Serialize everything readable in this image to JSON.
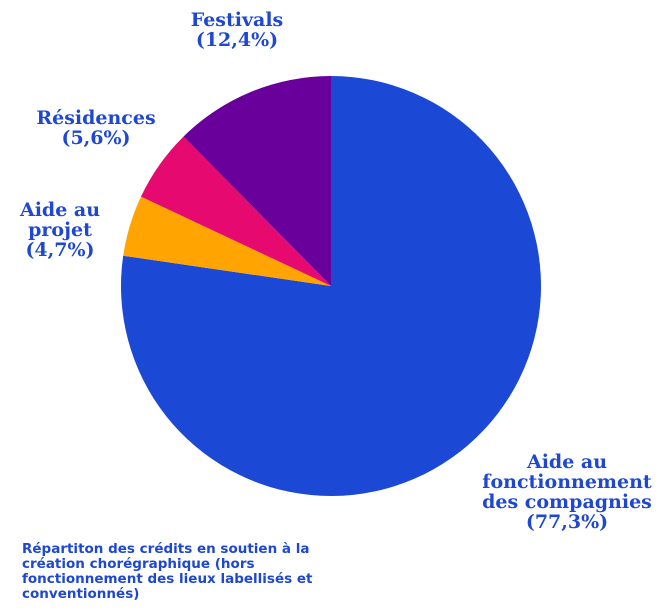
{
  "chart_data": {
    "type": "pie",
    "categories": [
      "Aide au fonctionnement des compagnies",
      "Aide au projet",
      "Résidences",
      "Festivals"
    ],
    "values": [
      77.3,
      4.7,
      5.6,
      12.4
    ],
    "value_labels": [
      "(77,3%)",
      "(4,7%)",
      "(5,6%)",
      "(12,4%)"
    ],
    "colors": [
      "#1c48d6",
      "#ffa400",
      "#e60a70",
      "#6a009c"
    ],
    "caption": "Répartiton des crédits en soutien à la création chorégraphique (hors fonctionnement des lieux labellisés et conventionnés)"
  }
}
